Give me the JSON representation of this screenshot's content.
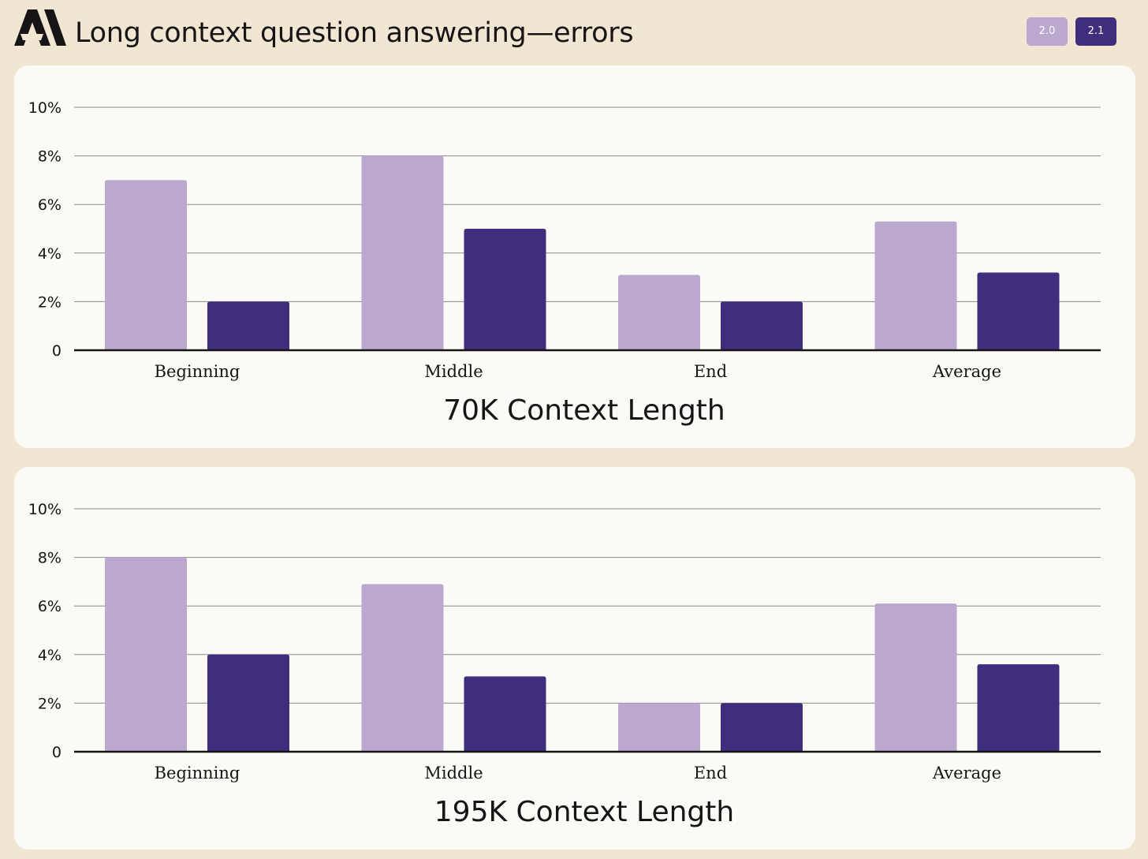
{
  "header": {
    "title": "Long context question answering—errors",
    "logo_icon": "anthropic-logo"
  },
  "legend": [
    {
      "label": "2.0",
      "color": "#baa8cf"
    },
    {
      "label": "2.1",
      "color": "#3f2d7d"
    }
  ],
  "chart_data": [
    {
      "type": "bar",
      "title": "70K Context Length",
      "categories": [
        "Beginning",
        "Middle",
        "End",
        "Average"
      ],
      "series": [
        {
          "name": "2.0",
          "color": "#baa8cf",
          "values": [
            7.0,
            8.0,
            3.1,
            5.3
          ]
        },
        {
          "name": "2.1",
          "color": "#3f2d7d",
          "values": [
            2.0,
            5.0,
            2.0,
            3.2
          ]
        }
      ],
      "yticks": [
        "0",
        "2%",
        "4%",
        "6%",
        "8%",
        "10%"
      ],
      "ylim": [
        0,
        10
      ],
      "grid": true
    },
    {
      "type": "bar",
      "title": "195K Context Length",
      "categories": [
        "Beginning",
        "Middle",
        "End",
        "Average"
      ],
      "series": [
        {
          "name": "2.0",
          "color": "#baa8cf",
          "values": [
            8.0,
            6.9,
            2.0,
            6.1
          ]
        },
        {
          "name": "2.1",
          "color": "#3f2d7d",
          "values": [
            4.0,
            3.1,
            2.0,
            3.6
          ]
        }
      ],
      "yticks": [
        "0",
        "2%",
        "4%",
        "6%",
        "8%",
        "10%"
      ],
      "ylim": [
        0,
        10
      ],
      "grid": true
    }
  ]
}
